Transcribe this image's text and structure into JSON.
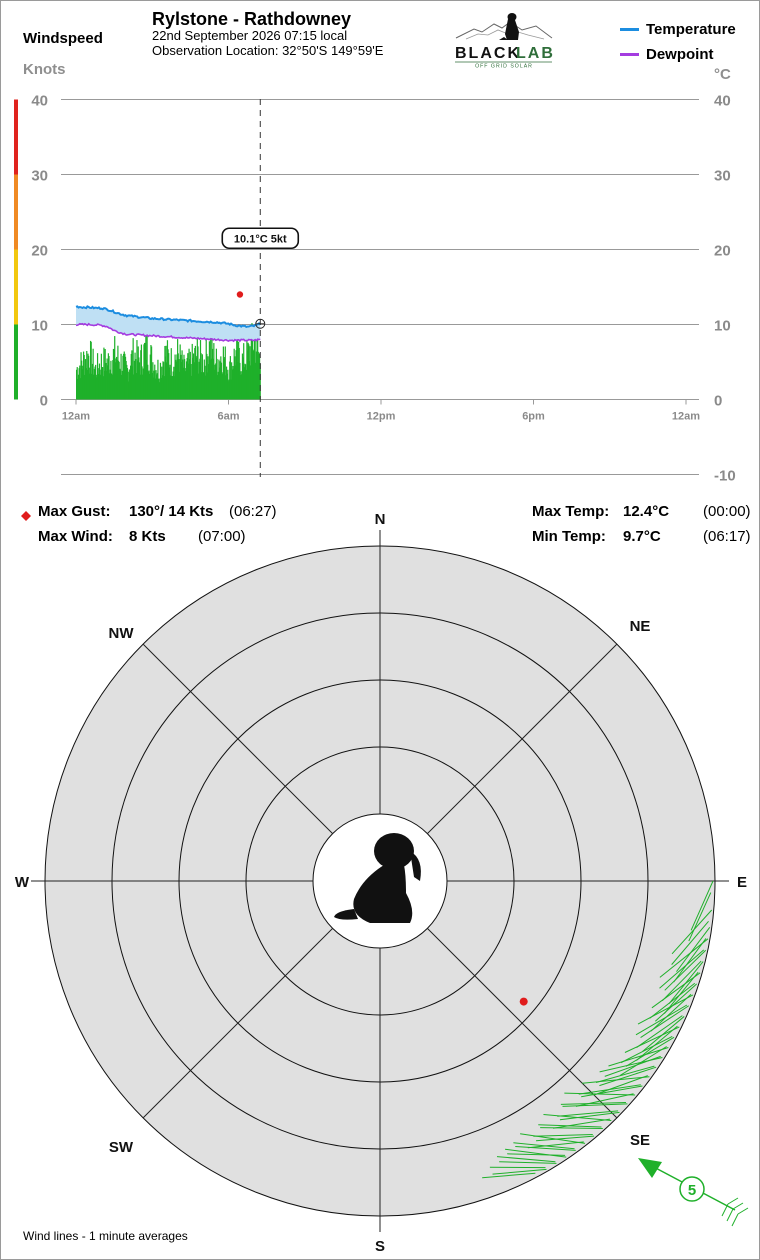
{
  "header": {
    "windspeed_label": "Windspeed",
    "knots_label": "Knots",
    "station_title": "Rylstone - Rathdowney",
    "date_line": "22nd September 2026  07:15 local",
    "location_line": "Observation Location:  32°50'S 149°59'E",
    "logo_text_black": "BLACK",
    "logo_text_green": "LAB",
    "logo_tagline": "OFF GRID SOLAR",
    "legend": [
      {
        "label": "Temperature",
        "color": "#1c8de0"
      },
      {
        "label": "Dewpoint",
        "color": "#a43ce0"
      }
    ],
    "celsius_label": "°C"
  },
  "colors": {
    "temperature": "#1c8de0",
    "temp_fill": "#bfe0f4",
    "dewpoint": "#a43ce0",
    "wind": "#1fb02a",
    "gust": "#e01c1c",
    "grid": "#999999",
    "compass_fill": "#e0e0e0",
    "windbar_scale": [
      "#1fb02a",
      "#f2c80f",
      "#f08a24",
      "#e0231e"
    ]
  },
  "chart_data": {
    "type": "line",
    "x_unit": "hour of day",
    "x_ticks": [
      {
        "v": 0,
        "label": "12am"
      },
      {
        "v": 6,
        "label": "6am"
      },
      {
        "v": 12,
        "label": "12pm"
      },
      {
        "v": 18,
        "label": "6pm"
      },
      {
        "v": 24,
        "label": "12am"
      }
    ],
    "left_axis": {
      "label": "Knots",
      "ylim": [
        0,
        40
      ],
      "ticks": [
        0,
        10,
        20,
        30,
        40
      ]
    },
    "right_axis": {
      "label": "°C",
      "ylim": [
        -10,
        40
      ],
      "ticks": [
        -10,
        0,
        10,
        20,
        30,
        40
      ]
    },
    "grid": true,
    "current_time": 7.25,
    "tooltip": "10.1°C  5kt",
    "series": [
      {
        "name": "Temperature",
        "axis": "right",
        "x": [
          0,
          0.25,
          0.5,
          0.75,
          1.0,
          1.25,
          1.5,
          1.75,
          2.0,
          2.5,
          3.0,
          3.5,
          4.0,
          4.5,
          5.0,
          5.5,
          6.0,
          6.25,
          6.5,
          6.75,
          7.0,
          7.25
        ],
        "values": [
          12.4,
          12.3,
          12.3,
          12.2,
          12.2,
          12.0,
          11.7,
          11.4,
          11.2,
          11.0,
          10.8,
          10.7,
          10.6,
          10.5,
          10.4,
          10.3,
          10.1,
          9.9,
          9.8,
          9.7,
          9.8,
          10.1
        ]
      },
      {
        "name": "Dewpoint",
        "axis": "right",
        "x": [
          0,
          0.5,
          1.0,
          1.25,
          1.5,
          1.75,
          2.0,
          2.5,
          3.0,
          3.5,
          4.0,
          4.5,
          5.0,
          5.5,
          6.0,
          6.5,
          7.0,
          7.25
        ],
        "values": [
          10.0,
          10.0,
          9.9,
          9.7,
          9.2,
          8.9,
          8.7,
          8.6,
          8.5,
          8.4,
          8.3,
          8.2,
          8.1,
          8.0,
          7.9,
          7.9,
          7.9,
          8.0
        ]
      },
      {
        "name": "Wind",
        "axis": "left",
        "type": "bar",
        "x": [
          0,
          0.25,
          0.5,
          0.75,
          1.0,
          1.25,
          1.5,
          1.75,
          2.0,
          2.25,
          2.5,
          2.75,
          3.0,
          3.25,
          3.5,
          3.75,
          4.0,
          4.25,
          4.5,
          4.75,
          5.0,
          5.25,
          5.5,
          5.75,
          6.0,
          6.25,
          6.5,
          6.75,
          7.0,
          7.25
        ],
        "values": [
          4,
          5,
          6,
          4,
          5,
          5,
          6,
          5,
          4,
          6,
          5,
          7,
          5,
          4,
          6,
          5,
          6,
          4,
          5,
          6,
          5,
          7,
          5,
          6,
          4,
          6,
          5,
          6,
          8,
          5
        ]
      }
    ],
    "gust_point": {
      "x": 6.45,
      "value": 14
    }
  },
  "stats": {
    "max_gust_label": "Max Gust:",
    "max_gust_value": "130°/  14 Kts",
    "max_gust_time": "(06:27)",
    "max_wind_label": "Max Wind:",
    "max_wind_value": "8 Kts",
    "max_wind_time": "(07:00)",
    "max_temp_label": "Max Temp:",
    "max_temp_value": "12.4°C",
    "max_temp_time": "(00:00)",
    "min_temp_label": "Min Temp:",
    "min_temp_value": "9.7°C",
    "min_temp_time": "(06:17)"
  },
  "compass": {
    "labels": {
      "n": "N",
      "ne": "NE",
      "e": "E",
      "se": "SE",
      "s": "S",
      "sw": "SW",
      "w": "W",
      "nw": "NW"
    },
    "ring_step_kts": 5,
    "wind_line_dirs": [
      90,
      95,
      98,
      100,
      102,
      104,
      106,
      108,
      110,
      112,
      114,
      116,
      118,
      120,
      122,
      124,
      126,
      128,
      130,
      132,
      134,
      136,
      138,
      140,
      142,
      144,
      146,
      148,
      150
    ],
    "gust_dir": 130,
    "gust_kts": 14,
    "current_dir": 120,
    "current_speed": "5",
    "footnote": "Wind lines - 1 minute averages"
  }
}
